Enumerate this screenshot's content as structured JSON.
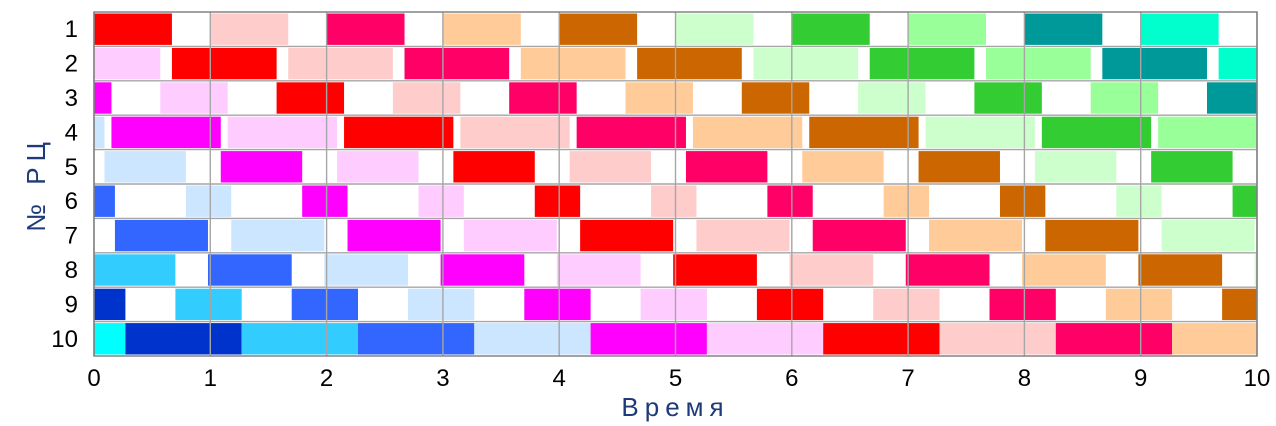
{
  "chart_data": {
    "type": "bar",
    "subtype": "gantt",
    "title": "",
    "xlabel": "Время",
    "ylabel": "№ РЦ",
    "xlim": [
      0,
      10
    ],
    "x_ticks": [
      "0",
      "1",
      "2",
      "3",
      "4",
      "5",
      "6",
      "7",
      "8",
      "9",
      "10"
    ],
    "y_ticks": [
      "1",
      "2",
      "3",
      "4",
      "5",
      "6",
      "7",
      "8",
      "9",
      "10"
    ],
    "grid": true,
    "legend": "none",
    "rows": [
      {
        "row": "1",
        "segments": [
          {
            "start": 0.0,
            "end": 0.67,
            "color": "#ff0000"
          },
          {
            "start": 1.0,
            "end": 1.67,
            "color": "#ffcccc"
          },
          {
            "start": 2.0,
            "end": 2.67,
            "color": "#ff0066"
          },
          {
            "start": 3.0,
            "end": 3.67,
            "color": "#ffcc99"
          },
          {
            "start": 4.0,
            "end": 4.67,
            "color": "#cc6600"
          },
          {
            "start": 5.0,
            "end": 5.67,
            "color": "#ccffcc"
          },
          {
            "start": 6.0,
            "end": 6.67,
            "color": "#33cc33"
          },
          {
            "start": 7.0,
            "end": 7.67,
            "color": "#99ff99"
          },
          {
            "start": 8.0,
            "end": 8.67,
            "color": "#009999"
          },
          {
            "start": 9.0,
            "end": 9.67,
            "color": "#00ffcc"
          }
        ]
      },
      {
        "row": "2",
        "segments": [
          {
            "start": 0.0,
            "end": 0.57,
            "color": "#ffccff"
          },
          {
            "start": 0.67,
            "end": 1.57,
            "color": "#ff0000"
          },
          {
            "start": 1.67,
            "end": 2.57,
            "color": "#ffcccc"
          },
          {
            "start": 2.67,
            "end": 3.57,
            "color": "#ff0066"
          },
          {
            "start": 3.67,
            "end": 4.57,
            "color": "#ffcc99"
          },
          {
            "start": 4.67,
            "end": 5.57,
            "color": "#cc6600"
          },
          {
            "start": 5.67,
            "end": 6.57,
            "color": "#ccffcc"
          },
          {
            "start": 6.67,
            "end": 7.57,
            "color": "#33cc33"
          },
          {
            "start": 7.67,
            "end": 8.57,
            "color": "#99ff99"
          },
          {
            "start": 8.67,
            "end": 9.57,
            "color": "#009999"
          },
          {
            "start": 9.67,
            "end": 10.0,
            "color": "#00ffcc"
          }
        ]
      },
      {
        "row": "3",
        "segments": [
          {
            "start": 0.0,
            "end": 0.15,
            "color": "#ff00ff"
          },
          {
            "start": 0.57,
            "end": 1.15,
            "color": "#ffccff"
          },
          {
            "start": 1.57,
            "end": 2.15,
            "color": "#ff0000"
          },
          {
            "start": 2.57,
            "end": 3.15,
            "color": "#ffcccc"
          },
          {
            "start": 3.57,
            "end": 4.15,
            "color": "#ff0066"
          },
          {
            "start": 4.57,
            "end": 5.15,
            "color": "#ffcc99"
          },
          {
            "start": 5.57,
            "end": 6.15,
            "color": "#cc6600"
          },
          {
            "start": 6.57,
            "end": 7.15,
            "color": "#ccffcc"
          },
          {
            "start": 7.57,
            "end": 8.15,
            "color": "#33cc33"
          },
          {
            "start": 8.57,
            "end": 9.15,
            "color": "#99ff99"
          },
          {
            "start": 9.57,
            "end": 10.0,
            "color": "#009999"
          }
        ]
      },
      {
        "row": "4",
        "segments": [
          {
            "start": 0.0,
            "end": 0.09,
            "color": "#cce6ff"
          },
          {
            "start": 0.15,
            "end": 1.09,
            "color": "#ff00ff"
          },
          {
            "start": 1.15,
            "end": 2.09,
            "color": "#ffccff"
          },
          {
            "start": 2.15,
            "end": 3.09,
            "color": "#ff0000"
          },
          {
            "start": 3.15,
            "end": 4.09,
            "color": "#ffcccc"
          },
          {
            "start": 4.15,
            "end": 5.09,
            "color": "#ff0066"
          },
          {
            "start": 5.15,
            "end": 6.09,
            "color": "#ffcc99"
          },
          {
            "start": 6.15,
            "end": 7.09,
            "color": "#cc6600"
          },
          {
            "start": 7.15,
            "end": 8.09,
            "color": "#ccffcc"
          },
          {
            "start": 8.15,
            "end": 9.09,
            "color": "#33cc33"
          },
          {
            "start": 9.15,
            "end": 10.0,
            "color": "#99ff99"
          }
        ]
      },
      {
        "row": "5",
        "segments": [
          {
            "start": 0.09,
            "end": 0.79,
            "color": "#cce6ff"
          },
          {
            "start": 1.09,
            "end": 1.79,
            "color": "#ff00ff"
          },
          {
            "start": 2.09,
            "end": 2.79,
            "color": "#ffccff"
          },
          {
            "start": 3.09,
            "end": 3.79,
            "color": "#ff0000"
          },
          {
            "start": 4.09,
            "end": 4.79,
            "color": "#ffcccc"
          },
          {
            "start": 5.09,
            "end": 5.79,
            "color": "#ff0066"
          },
          {
            "start": 6.09,
            "end": 6.79,
            "color": "#ffcc99"
          },
          {
            "start": 7.09,
            "end": 7.79,
            "color": "#cc6600"
          },
          {
            "start": 8.09,
            "end": 8.79,
            "color": "#ccffcc"
          },
          {
            "start": 9.09,
            "end": 9.79,
            "color": "#33cc33"
          }
        ]
      },
      {
        "row": "6",
        "segments": [
          {
            "start": 0.0,
            "end": 0.18,
            "color": "#3366ff"
          },
          {
            "start": 0.79,
            "end": 1.18,
            "color": "#cce6ff"
          },
          {
            "start": 1.79,
            "end": 2.18,
            "color": "#ff00ff"
          },
          {
            "start": 2.79,
            "end": 3.18,
            "color": "#ffccff"
          },
          {
            "start": 3.79,
            "end": 4.18,
            "color": "#ff0000"
          },
          {
            "start": 4.79,
            "end": 5.18,
            "color": "#ffcccc"
          },
          {
            "start": 5.79,
            "end": 6.18,
            "color": "#ff0066"
          },
          {
            "start": 6.79,
            "end": 7.18,
            "color": "#ffcc99"
          },
          {
            "start": 7.79,
            "end": 8.18,
            "color": "#cc6600"
          },
          {
            "start": 8.79,
            "end": 9.18,
            "color": "#ccffcc"
          },
          {
            "start": 9.79,
            "end": 10.0,
            "color": "#33cc33"
          }
        ]
      },
      {
        "row": "7",
        "segments": [
          {
            "start": 0.18,
            "end": 0.98,
            "color": "#3366ff"
          },
          {
            "start": 1.18,
            "end": 1.98,
            "color": "#cce6ff"
          },
          {
            "start": 2.18,
            "end": 2.98,
            "color": "#ff00ff"
          },
          {
            "start": 3.18,
            "end": 3.98,
            "color": "#ffccff"
          },
          {
            "start": 4.18,
            "end": 4.98,
            "color": "#ff0000"
          },
          {
            "start": 5.18,
            "end": 5.98,
            "color": "#ffcccc"
          },
          {
            "start": 6.18,
            "end": 6.98,
            "color": "#ff0066"
          },
          {
            "start": 7.18,
            "end": 7.98,
            "color": "#ffcc99"
          },
          {
            "start": 8.18,
            "end": 8.98,
            "color": "#cc6600"
          },
          {
            "start": 9.18,
            "end": 9.98,
            "color": "#ccffcc"
          }
        ]
      },
      {
        "row": "8",
        "segments": [
          {
            "start": 0.0,
            "end": 0.7,
            "color": "#33ccff"
          },
          {
            "start": 0.98,
            "end": 1.7,
            "color": "#3366ff"
          },
          {
            "start": 1.98,
            "end": 2.7,
            "color": "#cce6ff"
          },
          {
            "start": 2.98,
            "end": 3.7,
            "color": "#ff00ff"
          },
          {
            "start": 3.98,
            "end": 4.7,
            "color": "#ffccff"
          },
          {
            "start": 4.98,
            "end": 5.7,
            "color": "#ff0000"
          },
          {
            "start": 5.98,
            "end": 6.7,
            "color": "#ffcccc"
          },
          {
            "start": 6.98,
            "end": 7.7,
            "color": "#ff0066"
          },
          {
            "start": 7.98,
            "end": 8.7,
            "color": "#ffcc99"
          },
          {
            "start": 8.98,
            "end": 9.7,
            "color": "#cc6600"
          },
          {
            "start": 9.98,
            "end": 10.0,
            "color": "#ccffcc"
          }
        ]
      },
      {
        "row": "9",
        "segments": [
          {
            "start": 0.0,
            "end": 0.27,
            "color": "#0033cc"
          },
          {
            "start": 0.7,
            "end": 1.27,
            "color": "#33ccff"
          },
          {
            "start": 1.7,
            "end": 2.27,
            "color": "#3366ff"
          },
          {
            "start": 2.7,
            "end": 3.27,
            "color": "#cce6ff"
          },
          {
            "start": 3.7,
            "end": 4.27,
            "color": "#ff00ff"
          },
          {
            "start": 4.7,
            "end": 5.27,
            "color": "#ffccff"
          },
          {
            "start": 5.7,
            "end": 6.27,
            "color": "#ff0000"
          },
          {
            "start": 6.7,
            "end": 7.27,
            "color": "#ffcccc"
          },
          {
            "start": 7.7,
            "end": 8.27,
            "color": "#ff0066"
          },
          {
            "start": 8.7,
            "end": 9.27,
            "color": "#ffcc99"
          },
          {
            "start": 9.7,
            "end": 10.0,
            "color": "#cc6600"
          }
        ]
      },
      {
        "row": "10",
        "segments": [
          {
            "start": 0.0,
            "end": 0.27,
            "color": "#00ffff"
          },
          {
            "start": 0.27,
            "end": 1.27,
            "color": "#0033cc"
          },
          {
            "start": 1.27,
            "end": 2.27,
            "color": "#33ccff"
          },
          {
            "start": 2.27,
            "end": 3.27,
            "color": "#3366ff"
          },
          {
            "start": 3.27,
            "end": 4.27,
            "color": "#cce6ff"
          },
          {
            "start": 4.27,
            "end": 5.27,
            "color": "#ff00ff"
          },
          {
            "start": 5.27,
            "end": 6.27,
            "color": "#ffccff"
          },
          {
            "start": 6.27,
            "end": 7.27,
            "color": "#ff0000"
          },
          {
            "start": 7.27,
            "end": 8.27,
            "color": "#ffcccc"
          },
          {
            "start": 8.27,
            "end": 9.27,
            "color": "#ff0066"
          },
          {
            "start": 9.27,
            "end": 10.0,
            "color": "#ffcc99"
          }
        ]
      }
    ]
  }
}
